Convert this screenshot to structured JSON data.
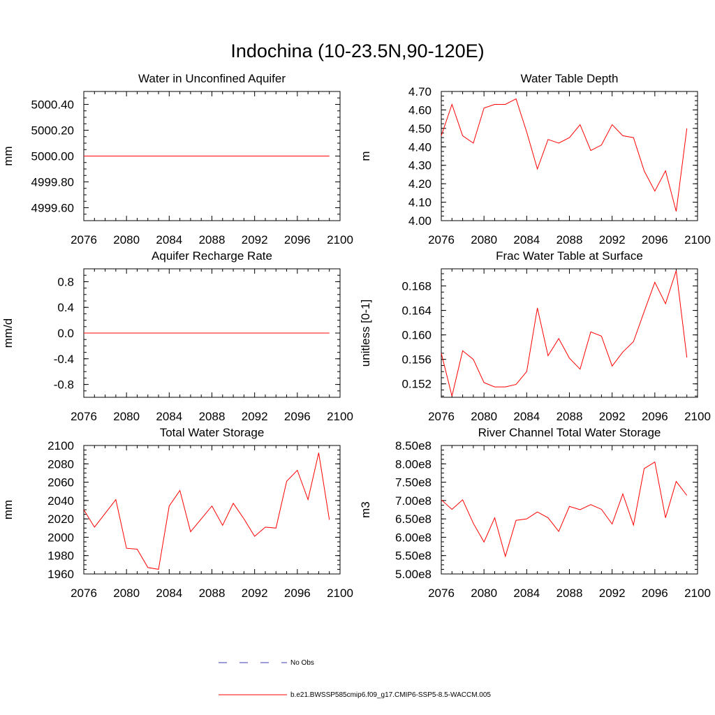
{
  "figure": {
    "title": "Indochina (10-23.5N,90-120E)"
  },
  "colors": {
    "model_line": "#ff0000",
    "obs_line": "#3b3bb3",
    "axis": "#000000"
  },
  "legend": {
    "items": [
      {
        "label": "No Obs",
        "style": "dashed",
        "color": "#3b3bb3"
      },
      {
        "label": "b.e21.BWSSP585cmip6.f09_g17.CMIP6-SSP5-8.5-WACCM.005",
        "style": "solid",
        "color": "#ff0000"
      }
    ]
  },
  "chart_data": [
    {
      "type": "line",
      "title": "Water in Unconfined Aquifer",
      "ylabel": "mm",
      "xlabel": "",
      "xlim": [
        2076,
        2100
      ],
      "ylim": [
        4999.5,
        5000.5
      ],
      "xticks": [
        "2076",
        "2080",
        "2084",
        "2088",
        "2092",
        "2096",
        "2100"
      ],
      "yticks": [
        "4999.60",
        "4999.80",
        "5000.00",
        "5000.20",
        "5000.40"
      ],
      "x": [
        2076,
        2077,
        2078,
        2079,
        2080,
        2081,
        2082,
        2083,
        2084,
        2085,
        2086,
        2087,
        2088,
        2089,
        2090,
        2091,
        2092,
        2093,
        2094,
        2095,
        2096,
        2097,
        2098,
        2099
      ],
      "series": [
        {
          "values": [
            5000,
            5000,
            5000,
            5000,
            5000,
            5000,
            5000,
            5000,
            5000,
            5000,
            5000,
            5000,
            5000,
            5000,
            5000,
            5000,
            5000,
            5000,
            5000,
            5000,
            5000,
            5000,
            5000,
            5000
          ]
        }
      ]
    },
    {
      "type": "line",
      "title": "Water Table Depth",
      "ylabel": "m",
      "xlabel": "",
      "xlim": [
        2076,
        2100
      ],
      "ylim": [
        4.0,
        4.7
      ],
      "xticks": [
        "2076",
        "2080",
        "2084",
        "2088",
        "2092",
        "2096",
        "2100"
      ],
      "yticks": [
        "4.00",
        "4.10",
        "4.20",
        "4.30",
        "4.40",
        "4.50",
        "4.60",
        "4.70"
      ],
      "x": [
        2076,
        2077,
        2078,
        2079,
        2080,
        2081,
        2082,
        2083,
        2084,
        2085,
        2086,
        2087,
        2088,
        2089,
        2090,
        2091,
        2092,
        2093,
        2094,
        2095,
        2096,
        2097,
        2098,
        2099
      ],
      "series": [
        {
          "values": [
            4.46,
            4.63,
            4.46,
            4.42,
            4.61,
            4.63,
            4.63,
            4.66,
            4.48,
            4.28,
            4.44,
            4.42,
            4.45,
            4.52,
            4.38,
            4.41,
            4.52,
            4.46,
            4.45,
            4.27,
            4.16,
            4.27,
            4.05,
            4.5
          ]
        }
      ]
    },
    {
      "type": "line",
      "title": "Aquifer Recharge Rate",
      "ylabel": "mm/d",
      "xlabel": "",
      "xlim": [
        2076,
        2100
      ],
      "ylim": [
        -1.0,
        1.0
      ],
      "xticks": [
        "2076",
        "2080",
        "2084",
        "2088",
        "2092",
        "2096",
        "2100"
      ],
      "yticks": [
        "-0.8",
        "-0.4",
        "0.0",
        "0.4",
        "0.8"
      ],
      "x": [
        2076,
        2077,
        2078,
        2079,
        2080,
        2081,
        2082,
        2083,
        2084,
        2085,
        2086,
        2087,
        2088,
        2089,
        2090,
        2091,
        2092,
        2093,
        2094,
        2095,
        2096,
        2097,
        2098,
        2099
      ],
      "series": [
        {
          "values": [
            0,
            0,
            0,
            0,
            0,
            0,
            0,
            0,
            0,
            0,
            0,
            0,
            0,
            0,
            0,
            0,
            0,
            0,
            0,
            0,
            0,
            0,
            0,
            0
          ]
        }
      ]
    },
    {
      "type": "line",
      "title": "Frac Water Table at Surface",
      "ylabel": "unitless [0-1]",
      "xlabel": "",
      "xlim": [
        2076,
        2100
      ],
      "ylim": [
        0.1498,
        0.1708
      ],
      "xticks": [
        "2076",
        "2080",
        "2084",
        "2088",
        "2092",
        "2096",
        "2100"
      ],
      "yticks": [
        "0.152",
        "0.156",
        "0.160",
        "0.164",
        "0.168"
      ],
      "x": [
        2076,
        2077,
        2078,
        2079,
        2080,
        2081,
        2082,
        2083,
        2084,
        2085,
        2086,
        2087,
        2088,
        2089,
        2090,
        2091,
        2092,
        2093,
        2094,
        2095,
        2096,
        2097,
        2098,
        2099
      ],
      "series": [
        {
          "values": [
            0.157,
            0.15,
            0.1574,
            0.156,
            0.1522,
            0.1515,
            0.1515,
            0.1519,
            0.154,
            0.1644,
            0.1566,
            0.1594,
            0.1562,
            0.1544,
            0.1605,
            0.1598,
            0.1549,
            0.1572,
            0.1589,
            0.1638,
            0.1686,
            0.1651,
            0.1705,
            0.1563
          ]
        }
      ]
    },
    {
      "type": "line",
      "title": "Total Water Storage",
      "ylabel": "mm",
      "xlabel": "",
      "xlim": [
        2076,
        2100
      ],
      "ylim": [
        1960,
        2100
      ],
      "xticks": [
        "2076",
        "2080",
        "2084",
        "2088",
        "2092",
        "2096",
        "2100"
      ],
      "yticks": [
        "1960",
        "1980",
        "2000",
        "2020",
        "2040",
        "2060",
        "2080",
        "2100"
      ],
      "x": [
        2076,
        2077,
        2078,
        2079,
        2080,
        2081,
        2082,
        2083,
        2084,
        2085,
        2086,
        2087,
        2088,
        2089,
        2090,
        2091,
        2092,
        2093,
        2094,
        2095,
        2096,
        2097,
        2098,
        2099
      ],
      "series": [
        {
          "values": [
            2030,
            2011,
            2026,
            2041,
            1988,
            1987,
            1967,
            1965,
            2034,
            2051,
            2006,
            2020,
            2034,
            2013,
            2037,
            2020,
            2001,
            2011,
            2010,
            2061,
            2073,
            2041,
            2092,
            2019
          ]
        }
      ]
    },
    {
      "type": "line",
      "title": "River Channel Total Water Storage",
      "ylabel": "m3",
      "xlabel": "",
      "xlim": [
        2076,
        2100
      ],
      "ylim": [
        500000000,
        850000000
      ],
      "xticks": [
        "2076",
        "2080",
        "2084",
        "2088",
        "2092",
        "2096",
        "2100"
      ],
      "yticks": [
        "5.00e8",
        "5.50e8",
        "6.00e8",
        "6.50e8",
        "7.00e8",
        "7.50e8",
        "8.00e8",
        "8.50e8"
      ],
      "x": [
        2076,
        2077,
        2078,
        2079,
        2080,
        2081,
        2082,
        2083,
        2084,
        2085,
        2086,
        2087,
        2088,
        2089,
        2090,
        2091,
        2092,
        2093,
        2094,
        2095,
        2096,
        2097,
        2098,
        2099
      ],
      "series": [
        {
          "values": [
            702000000,
            676000000,
            702000000,
            638000000,
            587000000,
            653000000,
            548000000,
            646000000,
            650000000,
            669000000,
            653000000,
            616000000,
            684000000,
            675000000,
            689000000,
            676000000,
            636000000,
            718000000,
            633000000,
            787000000,
            805000000,
            653000000,
            752000000,
            714000000
          ]
        }
      ]
    }
  ]
}
